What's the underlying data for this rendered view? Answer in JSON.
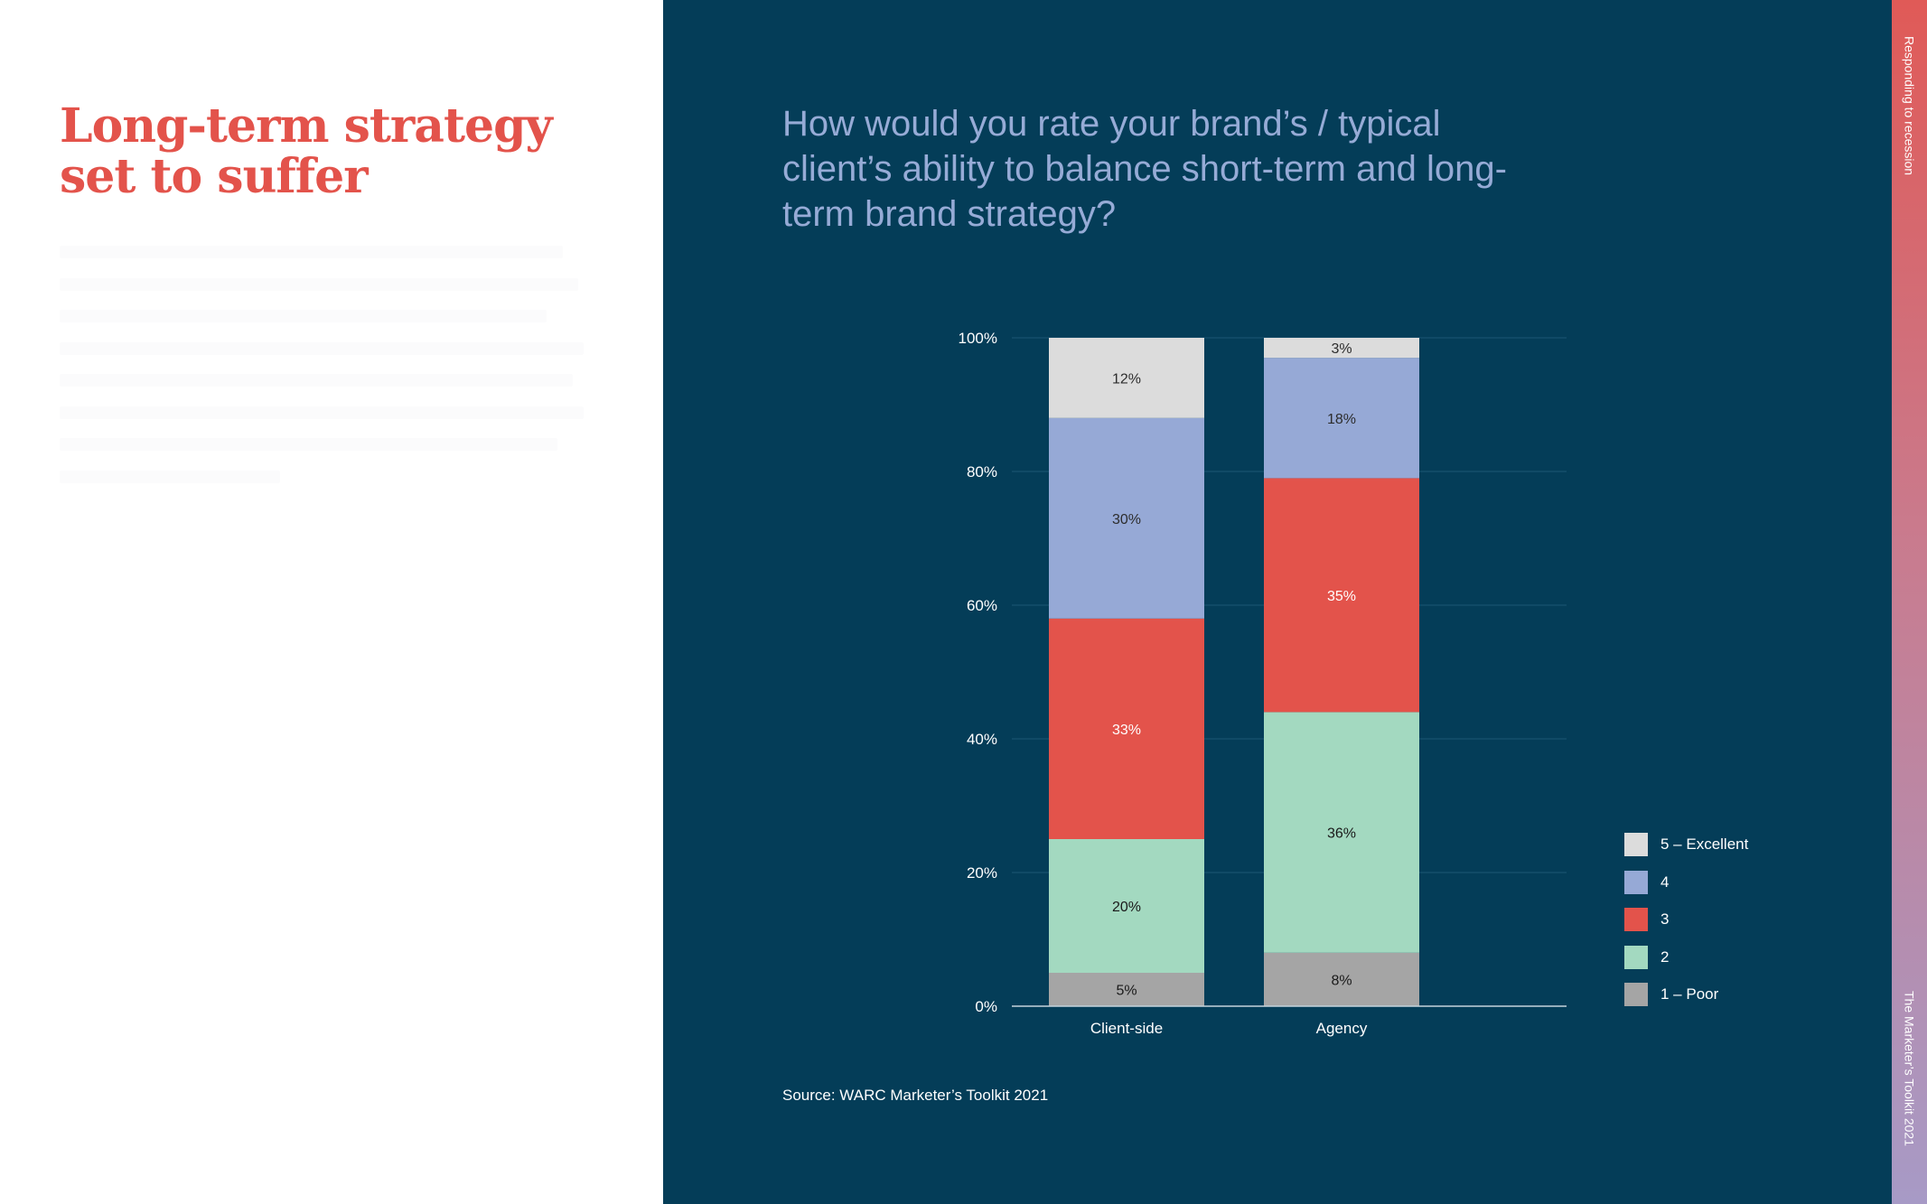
{
  "left": {
    "title": "Long-term strategy set to suffer"
  },
  "right": {
    "question": "How would you rate your brand’s / typical client’s ability to balance short-term and long-term brand strategy?",
    "source": "Source: WARC Marketer’s Toolkit 2021"
  },
  "side": {
    "top_text": "Responding to recession",
    "bottom_text": "The Marketer’s Toolkit 2021"
  },
  "chart_data": {
    "type": "bar",
    "stacked": true,
    "categories": [
      "Client-side",
      "Agency"
    ],
    "series": [
      {
        "name": "1 – Poor",
        "values": [
          5,
          8
        ],
        "labels": [
          "5%",
          "8%"
        ],
        "color": "#a5a5a5",
        "label_color": "#1a1a1a"
      },
      {
        "name": "2",
        "values": [
          20,
          36
        ],
        "labels": [
          "20%",
          "36%"
        ],
        "color": "#a3d9c0",
        "label_color": "#1a1a1a"
      },
      {
        "name": "3",
        "values": [
          33,
          35
        ],
        "labels": [
          "33%",
          "35%"
        ],
        "color": "#e3534b",
        "label_color": "#ffffff"
      },
      {
        "name": "4",
        "values": [
          30,
          18
        ],
        "labels": [
          "30%",
          "18%"
        ],
        "color": "#96a9d6",
        "label_color": "#2d2d2d"
      },
      {
        "name": "5 – Excellent",
        "values": [
          12,
          3
        ],
        "labels": [
          "12%",
          "3%"
        ],
        "color": "#dcdcdc",
        "label_color": "#2d2d2d"
      }
    ],
    "ylim": [
      0,
      100
    ],
    "yticks": [
      0,
      20,
      40,
      60,
      80,
      100
    ],
    "ytick_labels": [
      "0%",
      "20%",
      "40%",
      "60%",
      "80%",
      "100%"
    ],
    "grid": true,
    "legend_placement": "bottom-right",
    "legend_order": [
      "5 – Excellent",
      "4",
      "3",
      "2",
      "1 – Poor"
    ]
  }
}
